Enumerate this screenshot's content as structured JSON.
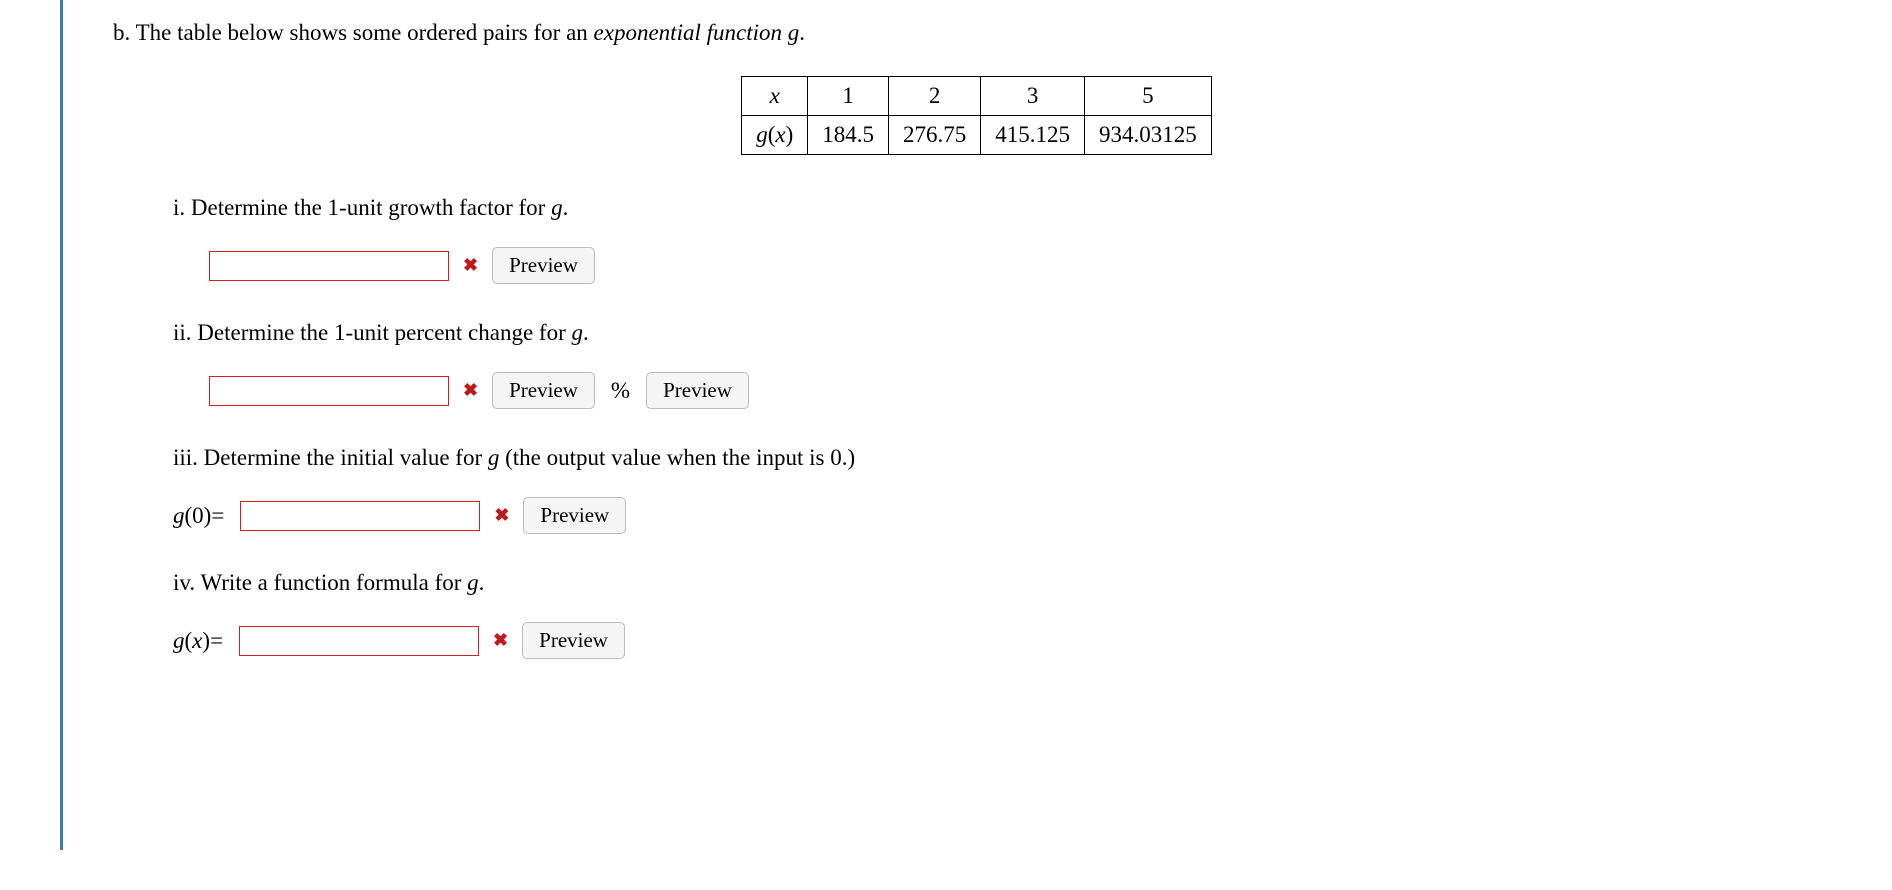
{
  "problem": {
    "letter": "b.",
    "intro_before_italic": "The table below shows some ordered pairs for an ",
    "intro_italic": "exponential function g",
    "intro_after_italic": "."
  },
  "table": {
    "row_headers": [
      "x",
      "g(x)"
    ],
    "columns": [
      "1",
      "2",
      "3",
      "5"
    ],
    "values": [
      "184.5",
      "276.75",
      "415.125",
      "934.03125"
    ],
    "border_color": "#000000",
    "cell_fontsize": 23
  },
  "sub": {
    "i": {
      "label": "i. Determine the 1-unit growth factor for ",
      "var": "g",
      "suffix": "."
    },
    "ii": {
      "label": "ii. Determine the 1-unit percent change for ",
      "var": "g",
      "suffix": "."
    },
    "iii": {
      "label": "iii. Determine the initial value for ",
      "var": "g",
      "suffix_text": " (the output value when the input is 0.)"
    },
    "iv": {
      "label": "iv. Write a function formula for ",
      "var": "g",
      "suffix": "."
    }
  },
  "answers": {
    "g0_label_fn": "g",
    "g0_label_arg": "(0)",
    "gx_label_fn": "g",
    "gx_label_arg": "(x)",
    "equals": " = "
  },
  "buttons": {
    "preview": "Preview"
  },
  "symbols": {
    "percent": "%",
    "wrong_mark": "✖"
  },
  "style": {
    "accent_border": "#3b7bbf",
    "input_border": "#d02020",
    "wrong_color": "#c01818",
    "background": "#ffffff"
  }
}
